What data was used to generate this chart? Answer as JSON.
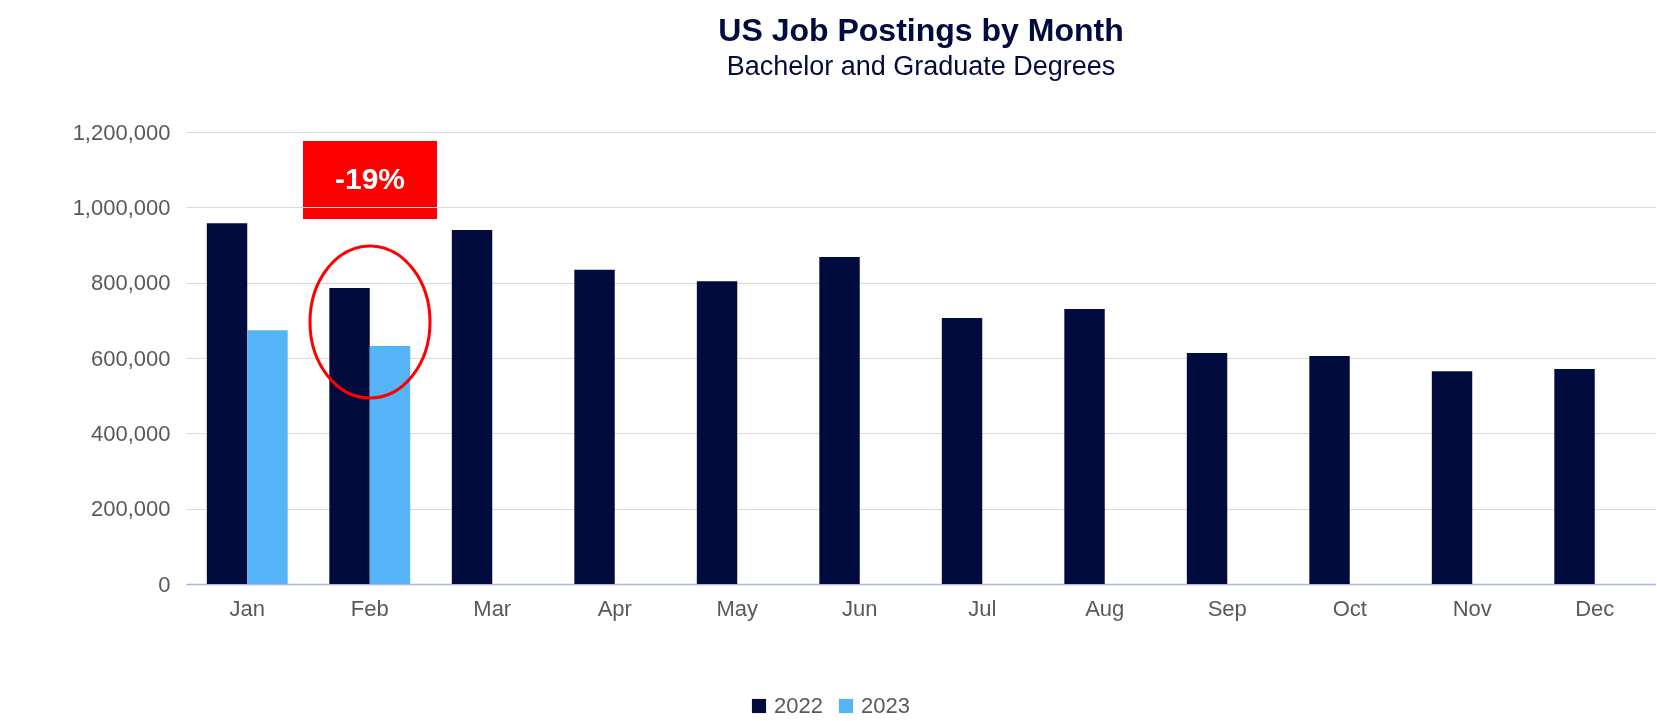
{
  "chart_data": {
    "type": "bar",
    "title": "US Job Postings by Month",
    "subtitle": "Bachelor and Graduate Degrees",
    "categories": [
      "Jan",
      "Feb",
      "Mar",
      "Apr",
      "May",
      "Jun",
      "Jul",
      "Aug",
      "Sep",
      "Oct",
      "Nov",
      "Dec"
    ],
    "series": [
      {
        "name": "2022",
        "color": "#020b3d",
        "values": [
          958000,
          786000,
          940000,
          834000,
          804000,
          868000,
          706000,
          730000,
          613000,
          605000,
          565000,
          571000
        ]
      },
      {
        "name": "2023",
        "color": "#55b4f8",
        "values": [
          674000,
          632000,
          null,
          null,
          null,
          null,
          null,
          null,
          null,
          null,
          null,
          null
        ]
      }
    ],
    "ylim": [
      0,
      1200000
    ],
    "yticks": [
      0,
      {
        "value": 200000,
        "label": "200,000"
      },
      {
        "value": 400000,
        "label": "400,000"
      },
      {
        "value": 600000,
        "label": "600,000"
      },
      {
        "value": 800000,
        "label": "800,000"
      },
      {
        "value": 1000000,
        "label": "1,000,000"
      },
      {
        "value": 1200000,
        "label": "1,200,000"
      }
    ],
    "grid": "y",
    "legend": "bottom",
    "annotations": [
      "-19%"
    ]
  }
}
